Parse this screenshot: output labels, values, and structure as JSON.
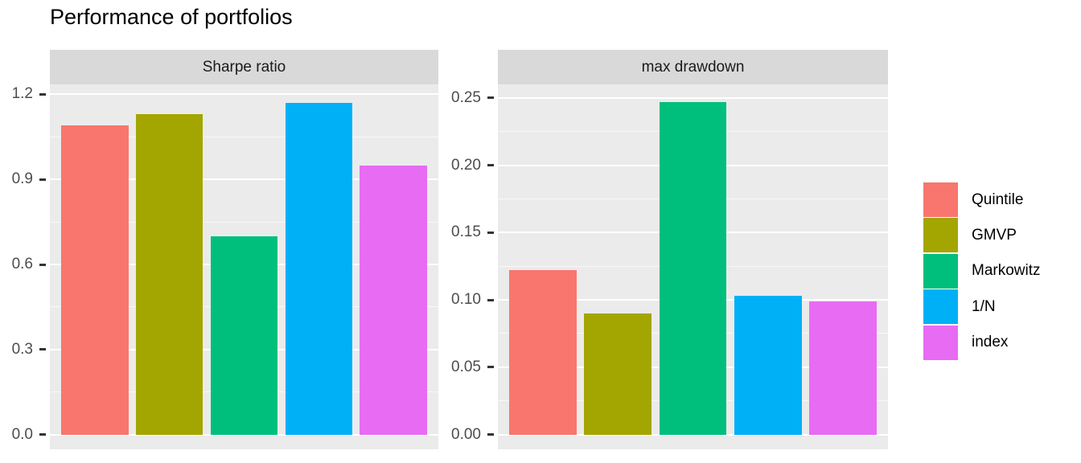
{
  "title": "Performance of portfolios",
  "chart_data": {
    "type": "bar",
    "title": "Performance of portfolios",
    "categories": [
      "Quintile",
      "GMVP",
      "Markowitz",
      "1/N",
      "index"
    ],
    "colors": [
      "#F8766D",
      "#A3A500",
      "#00BF7D",
      "#00B0F6",
      "#E76BF3"
    ],
    "legend_position": "right",
    "grid": "on",
    "panel_bg": "#EBEBEB",
    "strip_bg": "#D9D9D9",
    "grid_color": "#FFFFFF",
    "facets": [
      {
        "label": "Sharpe ratio",
        "values": [
          1.09,
          1.13,
          0.7,
          1.17,
          0.95
        ],
        "ylim": [
          -0.052,
          1.235
        ],
        "yticks": [
          {
            "label": "0.0",
            "value": 0.0
          },
          {
            "label": "0.3",
            "value": 0.3
          },
          {
            "label": "0.6",
            "value": 0.6
          },
          {
            "label": "0.9",
            "value": 0.9
          },
          {
            "label": "1.2",
            "value": 1.2
          }
        ]
      },
      {
        "label": "max drawdown",
        "values": [
          0.122,
          0.09,
          0.247,
          0.103,
          0.099
        ],
        "ylim": [
          -0.011,
          0.26
        ],
        "yticks": [
          {
            "label": "0.00",
            "value": 0.0
          },
          {
            "label": "0.05",
            "value": 0.05
          },
          {
            "label": "0.10",
            "value": 0.1
          },
          {
            "label": "0.15",
            "value": 0.15
          },
          {
            "label": "0.20",
            "value": 0.2
          },
          {
            "label": "0.25",
            "value": 0.25
          }
        ]
      }
    ],
    "legend": {
      "items": [
        {
          "label": "Quintile",
          "color": "#F8766D"
        },
        {
          "label": "GMVP",
          "color": "#A3A500"
        },
        {
          "label": "Markowitz",
          "color": "#00BF7D"
        },
        {
          "label": "1/N",
          "color": "#00B0F6"
        },
        {
          "label": "index",
          "color": "#E76BF3"
        }
      ]
    }
  }
}
